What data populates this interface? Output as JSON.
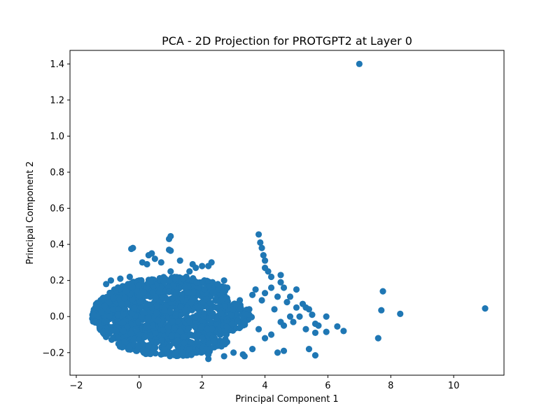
{
  "chart_data": {
    "type": "scatter",
    "title": "PCA - 2D Projection for PROTGPT2 at Layer 0",
    "xlabel": "Principal Component 1",
    "ylabel": "Principal Component 2",
    "xlim": [
      -2.2,
      11.6
    ],
    "ylim": [
      -0.325,
      1.475
    ],
    "xticks": [
      -2,
      0,
      2,
      4,
      6,
      8,
      10
    ],
    "yticks": [
      -0.2,
      0.0,
      0.2,
      0.4,
      0.6,
      0.8,
      1.0,
      1.2,
      1.4
    ],
    "xtick_labels": [
      "−2",
      "0",
      "2",
      "4",
      "6",
      "8",
      "10"
    ],
    "ytick_labels": [
      "−0.2",
      "0.0",
      "0.2",
      "0.4",
      "0.6",
      "0.8",
      "1.0",
      "1.2",
      "1.4"
    ],
    "marker_color": "#1f77b4",
    "grid": false,
    "legend": "none",
    "dense_cluster": {
      "description_region": "main mass",
      "x_range": [
        -1.5,
        3.6
      ],
      "y_range": [
        -0.22,
        0.22
      ],
      "count": 1400
    },
    "points": [
      [
        7.0,
        1.4
      ],
      [
        11.0,
        0.045
      ],
      [
        8.3,
        0.015
      ],
      [
        7.7,
        0.035
      ],
      [
        7.75,
        0.14
      ],
      [
        7.6,
        -0.12
      ],
      [
        6.5,
        -0.08
      ],
      [
        6.3,
        -0.055
      ],
      [
        5.95,
        -0.085
      ],
      [
        5.95,
        0.0
      ],
      [
        5.7,
        -0.05
      ],
      [
        5.6,
        -0.215
      ],
      [
        5.4,
        -0.18
      ],
      [
        5.6,
        -0.09
      ],
      [
        5.6,
        -0.04
      ],
      [
        5.5,
        0.01
      ],
      [
        5.3,
        0.05
      ],
      [
        5.4,
        0.04
      ],
      [
        5.2,
        0.07
      ],
      [
        5.3,
        -0.07
      ],
      [
        5.1,
        0.0
      ],
      [
        5.0,
        0.05
      ],
      [
        4.8,
        0.0
      ],
      [
        4.9,
        -0.03
      ],
      [
        5.0,
        0.15
      ],
      [
        4.8,
        0.11
      ],
      [
        4.5,
        0.23
      ],
      [
        4.5,
        0.19
      ],
      [
        4.6,
        0.16
      ],
      [
        4.7,
        0.08
      ],
      [
        4.6,
        -0.19
      ],
      [
        4.4,
        -0.2
      ],
      [
        4.6,
        -0.05
      ],
      [
        4.5,
        -0.03
      ],
      [
        4.3,
        0.04
      ],
      [
        4.4,
        0.11
      ],
      [
        4.2,
        0.16
      ],
      [
        4.2,
        0.22
      ],
      [
        4.1,
        0.25
      ],
      [
        4.0,
        0.27
      ],
      [
        4.0,
        0.31
      ],
      [
        3.95,
        0.34
      ],
      [
        3.9,
        0.38
      ],
      [
        3.85,
        0.41
      ],
      [
        3.8,
        0.455
      ],
      [
        4.0,
        0.13
      ],
      [
        3.9,
        0.09
      ],
      [
        3.8,
        -0.07
      ],
      [
        3.6,
        -0.18
      ],
      [
        4.0,
        -0.12
      ],
      [
        4.2,
        -0.1
      ],
      [
        3.7,
        0.15
      ],
      [
        3.6,
        0.12
      ],
      [
        3.5,
        0.04
      ],
      [
        3.3,
        -0.21
      ],
      [
        3.35,
        -0.22
      ],
      [
        3.2,
        0.09
      ],
      [
        2.8,
        0.16
      ],
      [
        2.7,
        0.2
      ],
      [
        2.5,
        0.18
      ],
      [
        2.3,
        0.3
      ],
      [
        2.2,
        0.28
      ],
      [
        2.0,
        0.28
      ],
      [
        1.8,
        0.27
      ],
      [
        1.7,
        0.29
      ],
      [
        1.6,
        0.25
      ],
      [
        1.5,
        0.22
      ],
      [
        1.3,
        0.31
      ],
      [
        1.0,
        0.25
      ],
      [
        0.95,
        0.37
      ],
      [
        1.0,
        0.365
      ],
      [
        0.95,
        0.43
      ],
      [
        1.0,
        0.445
      ],
      [
        0.7,
        0.3
      ],
      [
        0.5,
        0.32
      ],
      [
        0.4,
        0.35
      ],
      [
        0.3,
        0.34
      ],
      [
        0.25,
        0.29
      ],
      [
        0.1,
        0.3
      ],
      [
        -0.2,
        0.38
      ],
      [
        -0.25,
        0.375
      ],
      [
        -0.3,
        0.22
      ],
      [
        -0.6,
        0.21
      ],
      [
        -0.9,
        0.2
      ],
      [
        -1.05,
        0.18
      ],
      [
        -1.35,
        0.05
      ],
      [
        -1.45,
        0.01
      ],
      [
        -1.4,
        -0.03
      ],
      [
        2.2,
        -0.235
      ],
      [
        2.2,
        -0.21
      ],
      [
        2.7,
        -0.22
      ],
      [
        3.0,
        -0.2
      ],
      [
        0.8,
        -0.18
      ],
      [
        1.6,
        -0.18
      ],
      [
        0.3,
        -0.16
      ],
      [
        -0.5,
        -0.08
      ]
    ]
  }
}
